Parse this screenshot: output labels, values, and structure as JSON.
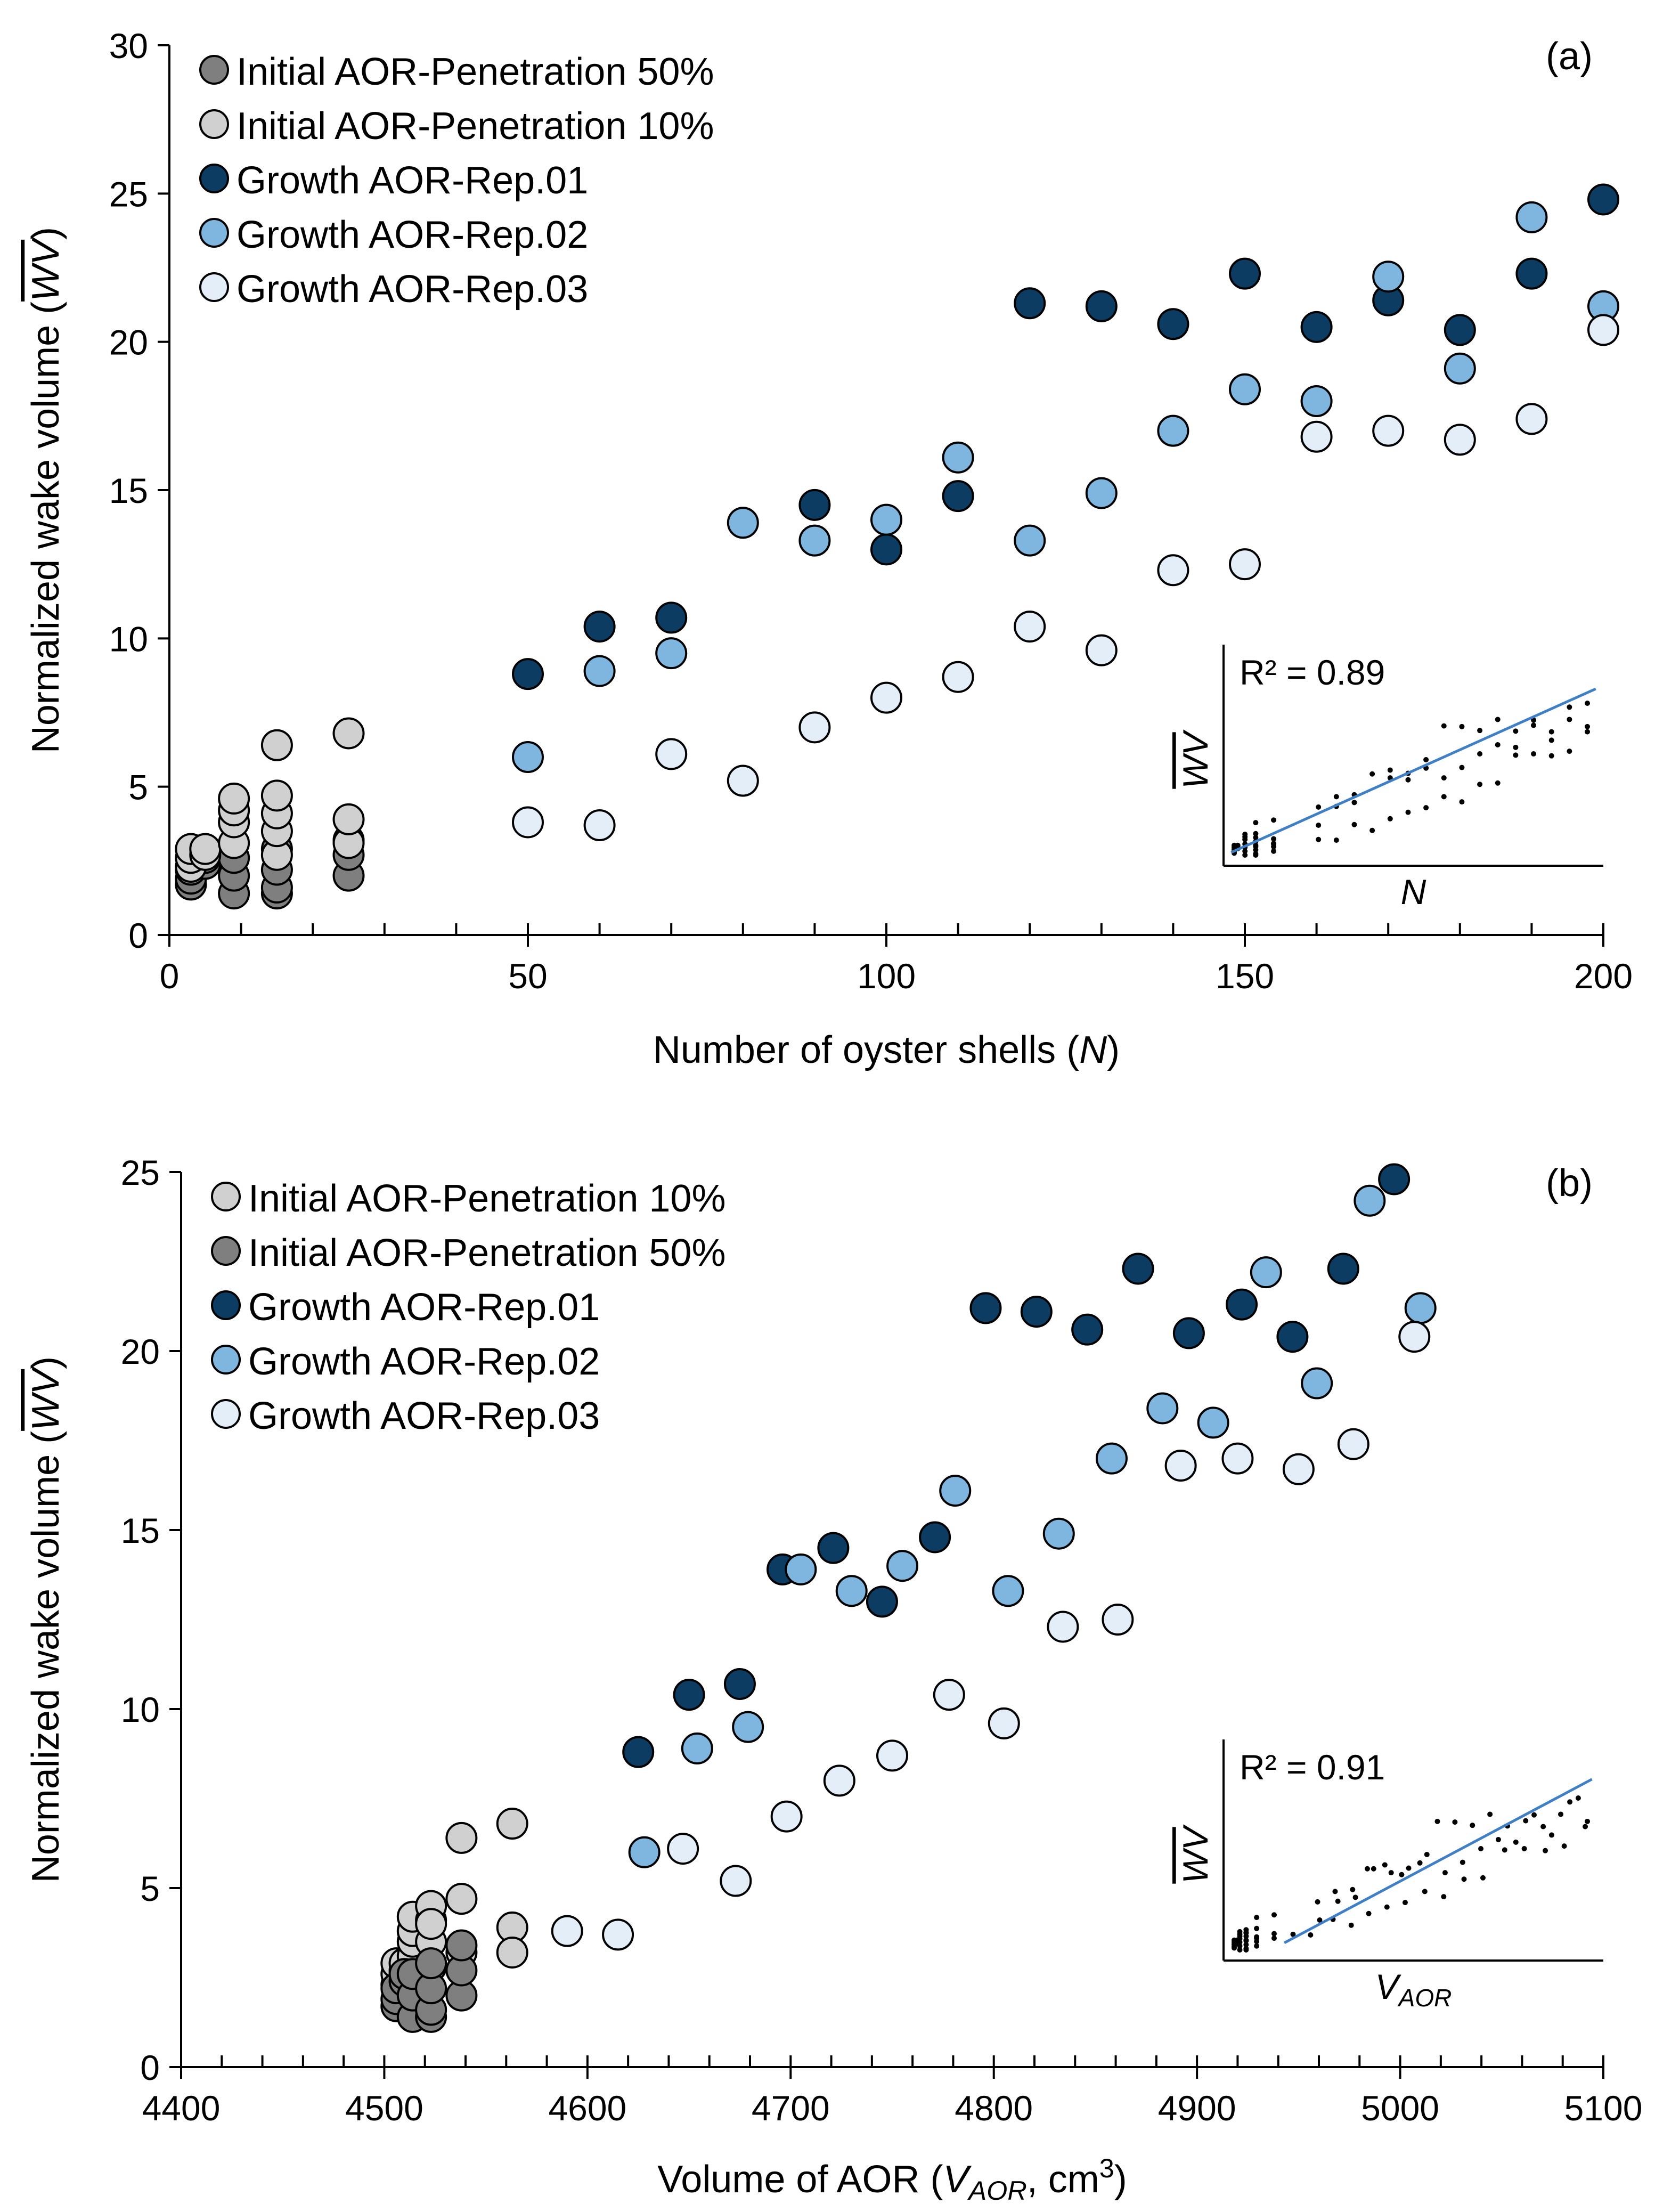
{
  "colors": {
    "initial_50": "#7f7f7f",
    "initial_10": "#d0d0d0",
    "growth_rep01": "#0c3c62",
    "growth_rep02": "#7fb6df",
    "growth_rep03": "#e3eef8",
    "fit_line": "#3f7fc8"
  },
  "chart_data": [
    {
      "id": "a",
      "type": "scatter",
      "panel_label": "(a)",
      "xlabel": "Number of oyster shells (N)",
      "ylabel": "Normalized wake volume (WV)",
      "xlim": [
        0,
        200
      ],
      "ylim": [
        0,
        30
      ],
      "xticks": [
        0,
        50,
        100,
        150,
        200
      ],
      "yticks": [
        0,
        5,
        10,
        15,
        20,
        25,
        30
      ],
      "minor_x_step": 10,
      "legend_position": "top-left",
      "series": [
        {
          "name": "Initial AOR-Penetration 50%",
          "color_key": "initial_50",
          "x": [
            3,
            3,
            3,
            5,
            5,
            9,
            9,
            9,
            15,
            15,
            15,
            15,
            25,
            25,
            25
          ],
          "y": [
            1.7,
            1.9,
            2.2,
            2.4,
            2.6,
            1.4,
            2.0,
            2.6,
            1.4,
            1.6,
            2.2,
            2.9,
            2.0,
            2.7,
            3.2
          ]
        },
        {
          "name": "Initial AOR-Penetration 10%",
          "color_key": "initial_10",
          "x": [
            3,
            3,
            3,
            5,
            5,
            9,
            9,
            9,
            9,
            15,
            15,
            15,
            15,
            15,
            25,
            25,
            25
          ],
          "y": [
            2.3,
            2.6,
            2.9,
            2.7,
            2.9,
            3.1,
            3.8,
            4.2,
            4.6,
            2.7,
            3.5,
            4.1,
            4.7,
            6.4,
            3.1,
            3.9,
            6.8
          ]
        },
        {
          "name": "Growth AOR-Rep.01",
          "color_key": "growth_rep01",
          "x": [
            50,
            60,
            70,
            90,
            100,
            110,
            120,
            130,
            140,
            150,
            160,
            170,
            180,
            190,
            200
          ],
          "y": [
            8.8,
            10.4,
            10.7,
            14.5,
            13.0,
            14.8,
            21.3,
            21.2,
            20.6,
            22.3,
            20.5,
            21.4,
            20.4,
            22.3,
            24.8
          ]
        },
        {
          "name": "Growth AOR-Rep.02",
          "color_key": "growth_rep02",
          "x": [
            50,
            60,
            70,
            80,
            90,
            100,
            110,
            120,
            130,
            140,
            150,
            160,
            170,
            180,
            190,
            200
          ],
          "y": [
            6.0,
            8.9,
            9.5,
            13.9,
            13.3,
            14.0,
            16.1,
            13.3,
            14.9,
            17.0,
            18.4,
            18.0,
            22.2,
            19.1,
            24.2,
            21.2
          ]
        },
        {
          "name": "Growth AOR-Rep.03",
          "color_key": "growth_rep03",
          "x": [
            50,
            60,
            70,
            80,
            90,
            100,
            110,
            120,
            130,
            140,
            150,
            160,
            170,
            180,
            190,
            200
          ],
          "y": [
            3.8,
            3.7,
            6.1,
            5.2,
            7.0,
            8.0,
            8.7,
            10.4,
            9.6,
            12.3,
            12.5,
            16.8,
            17.0,
            16.7,
            17.4,
            20.4
          ]
        }
      ],
      "inset": {
        "r2_label": "R² = 0.89",
        "xlabel": "N",
        "ylabel": "WV",
        "fit_from": [
          0.02,
          0.06
        ],
        "fit_to": [
          0.98,
          0.8
        ]
      }
    },
    {
      "id": "b",
      "type": "scatter",
      "panel_label": "(b)",
      "xlabel": "Volume of AOR (VAOR, cm3)",
      "xlabel_parts": {
        "prefix": "Volume of AOR (",
        "var": "V",
        "sub": "AOR",
        "mid": ", cm",
        "sup": "3",
        "suffix": ")"
      },
      "ylabel": "Normalized wake volume (WV)",
      "xlim": [
        4400,
        5100
      ],
      "ylim": [
        0,
        25
      ],
      "xticks": [
        4400,
        4500,
        4600,
        4700,
        4800,
        4900,
        5000,
        5100
      ],
      "yticks": [
        0,
        5,
        10,
        15,
        20,
        25
      ],
      "minor_x_step": 20,
      "legend_position": "top-left",
      "series": [
        {
          "name": "Initial AOR-Penetration 10%",
          "color_key": "initial_10",
          "x": [
            4506,
            4506,
            4506,
            4510,
            4510,
            4514,
            4514,
            4514,
            4514,
            4523,
            4523,
            4523,
            4523,
            4523,
            4538,
            4538,
            4538,
            4563,
            4563,
            4563
          ],
          "y": [
            2.3,
            2.6,
            2.9,
            2.7,
            2.9,
            3.1,
            3.5,
            3.8,
            4.2,
            2.8,
            3.5,
            4.1,
            4.5,
            4.0,
            4.7,
            6.4,
            3.2,
            3.9,
            6.8,
            3.2
          ]
        },
        {
          "name": "Initial AOR-Penetration 50%",
          "color_key": "initial_50",
          "x": [
            4506,
            4506,
            4506,
            4510,
            4510,
            4514,
            4514,
            4514,
            4523,
            4523,
            4523,
            4523,
            4538,
            4538,
            4538
          ],
          "y": [
            1.7,
            1.9,
            2.2,
            2.4,
            2.6,
            1.4,
            2.0,
            2.6,
            1.4,
            1.6,
            2.2,
            2.9,
            2.0,
            2.7,
            3.4
          ]
        },
        {
          "name": "Growth AOR-Rep.01",
          "color_key": "growth_rep01",
          "x": [
            4625,
            4650,
            4675,
            4696,
            4721,
            4745,
            4771,
            4796,
            4821,
            4846,
            4871,
            4896,
            4922,
            4947,
            4972,
            4997
          ],
          "y": [
            8.8,
            10.4,
            10.7,
            13.9,
            14.5,
            13.0,
            14.8,
            21.2,
            21.1,
            20.6,
            22.3,
            20.5,
            21.3,
            20.4,
            22.3,
            24.8
          ]
        },
        {
          "name": "Growth AOR-Rep.02",
          "color_key": "growth_rep02",
          "x": [
            4628,
            4654,
            4679,
            4705,
            4730,
            4755,
            4781,
            4807,
            4832,
            4858,
            4883,
            4908,
            4934,
            4959,
            4985,
            5010
          ],
          "y": [
            6.0,
            8.9,
            9.5,
            13.9,
            13.3,
            14.0,
            16.1,
            13.3,
            14.9,
            17.0,
            18.4,
            18.0,
            22.2,
            19.1,
            24.2,
            21.2
          ]
        },
        {
          "name": "Growth AOR-Rep.03",
          "color_key": "growth_rep03",
          "x": [
            4590,
            4615,
            4647,
            4673,
            4698,
            4724,
            4750,
            4778,
            4805,
            4834,
            4861,
            4892,
            4920,
            4950,
            4977,
            5007
          ],
          "y": [
            3.8,
            3.7,
            6.1,
            5.2,
            7.0,
            8.0,
            8.7,
            10.4,
            9.6,
            12.3,
            12.5,
            16.8,
            17.0,
            16.7,
            17.4,
            20.4
          ]
        }
      ],
      "inset": {
        "r2_label": "R² = 0.91",
        "xlabel": "VAOR",
        "xlabel_parts": {
          "var": "V",
          "sub": "AOR"
        },
        "ylabel": "WV",
        "fit_from": [
          0.16,
          0.08
        ],
        "fit_to": [
          0.97,
          0.82
        ]
      }
    }
  ]
}
